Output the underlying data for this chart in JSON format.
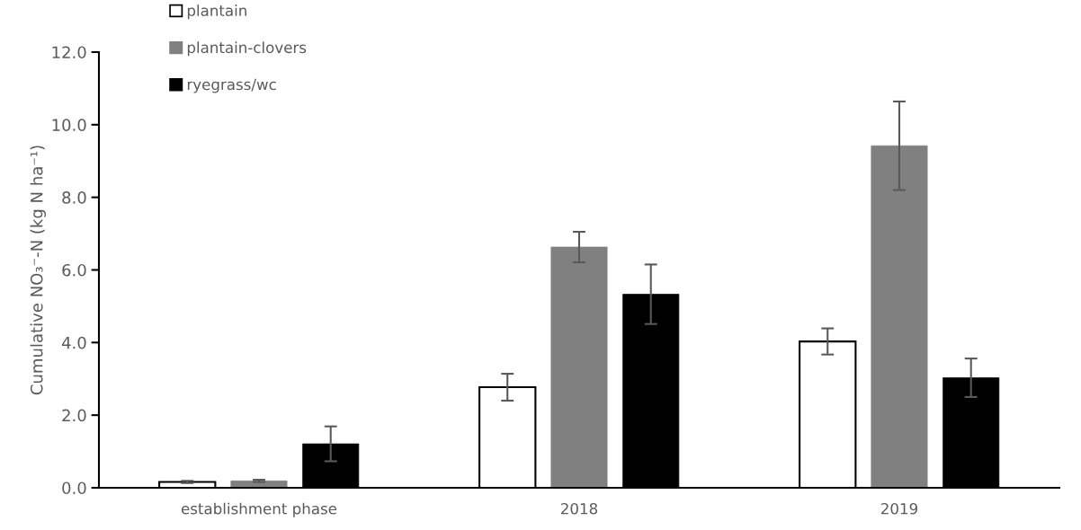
{
  "chart_data": {
    "type": "bar",
    "ylabel": "Cumulative NO₃⁻-N (kg N ha⁻¹)",
    "categories": [
      "establishment phase",
      "2018",
      "2019"
    ],
    "series": [
      {
        "name": "plantain",
        "color": "#ffffff",
        "values": [
          0.16,
          2.77,
          4.03
        ],
        "errors": [
          0.03,
          0.37,
          0.36
        ]
      },
      {
        "name": "plantain-clovers",
        "color": "#808080",
        "values": [
          0.19,
          6.63,
          9.42
        ],
        "errors": [
          0.03,
          0.42,
          1.22
        ]
      },
      {
        "name": "ryegrass/wc",
        "color": "#000000",
        "values": [
          1.21,
          5.33,
          3.03
        ],
        "errors": [
          0.48,
          0.82,
          0.53
        ]
      }
    ],
    "ylim": [
      0,
      12
    ],
    "yticks": [
      {
        "value": 0,
        "label": "0.0"
      },
      {
        "value": 2,
        "label": "2.0"
      },
      {
        "value": 4,
        "label": "4.0"
      },
      {
        "value": 6,
        "label": "6.0"
      },
      {
        "value": 8,
        "label": "8.0"
      },
      {
        "value": 10,
        "label": "10.0"
      },
      {
        "value": 12,
        "label": "12.0"
      }
    ],
    "grid": false,
    "legend": "top left"
  }
}
